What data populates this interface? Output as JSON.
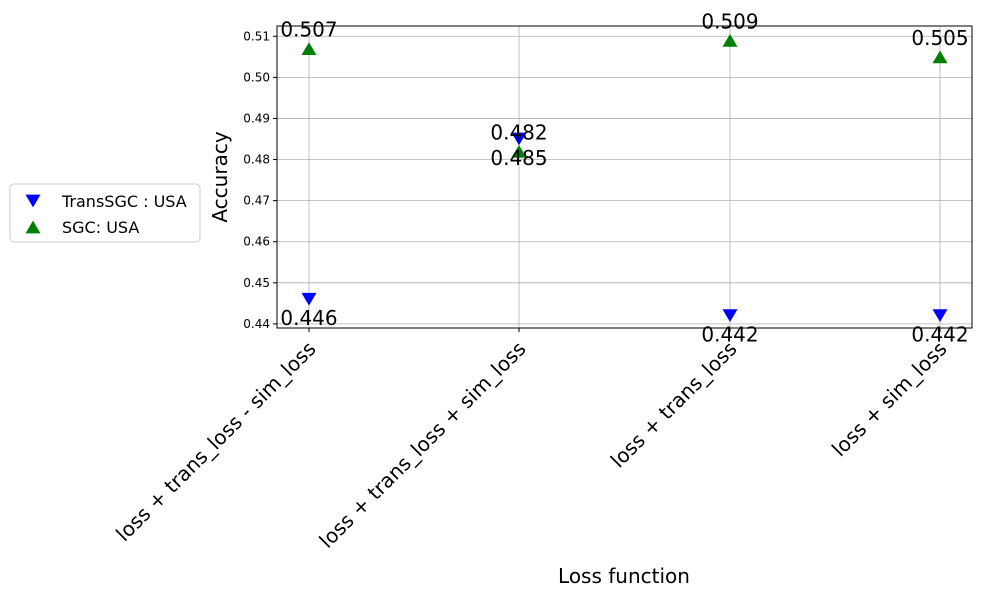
{
  "chart_data": {
    "type": "scatter",
    "title": "",
    "xlabel": "Loss function",
    "ylabel": "Accuracy",
    "categories": [
      "loss + trans_loss - sim_loss",
      "loss + trans_loss + sim_loss",
      "loss + trans_loss",
      "loss + sim_loss"
    ],
    "ylim": [
      0.439,
      0.5125
    ],
    "yticks": [
      "0.44",
      "0.45",
      "0.46",
      "0.47",
      "0.48",
      "0.49",
      "0.50",
      "0.51"
    ],
    "grid": true,
    "legend_position": "left",
    "series": [
      {
        "name": "TransSGC : USA",
        "marker": "triangle-down",
        "color": "#0000ff",
        "values": [
          0.446,
          0.485,
          0.442,
          0.442
        ],
        "labels": [
          "0.446",
          "0.485",
          "0.442",
          "0.442"
        ]
      },
      {
        "name": "SGC: USA",
        "marker": "triangle-up",
        "color": "#008000",
        "values": [
          0.507,
          0.482,
          0.509,
          0.505
        ],
        "labels": [
          "0.507",
          "0.482",
          "0.509",
          "0.505"
        ]
      }
    ]
  }
}
